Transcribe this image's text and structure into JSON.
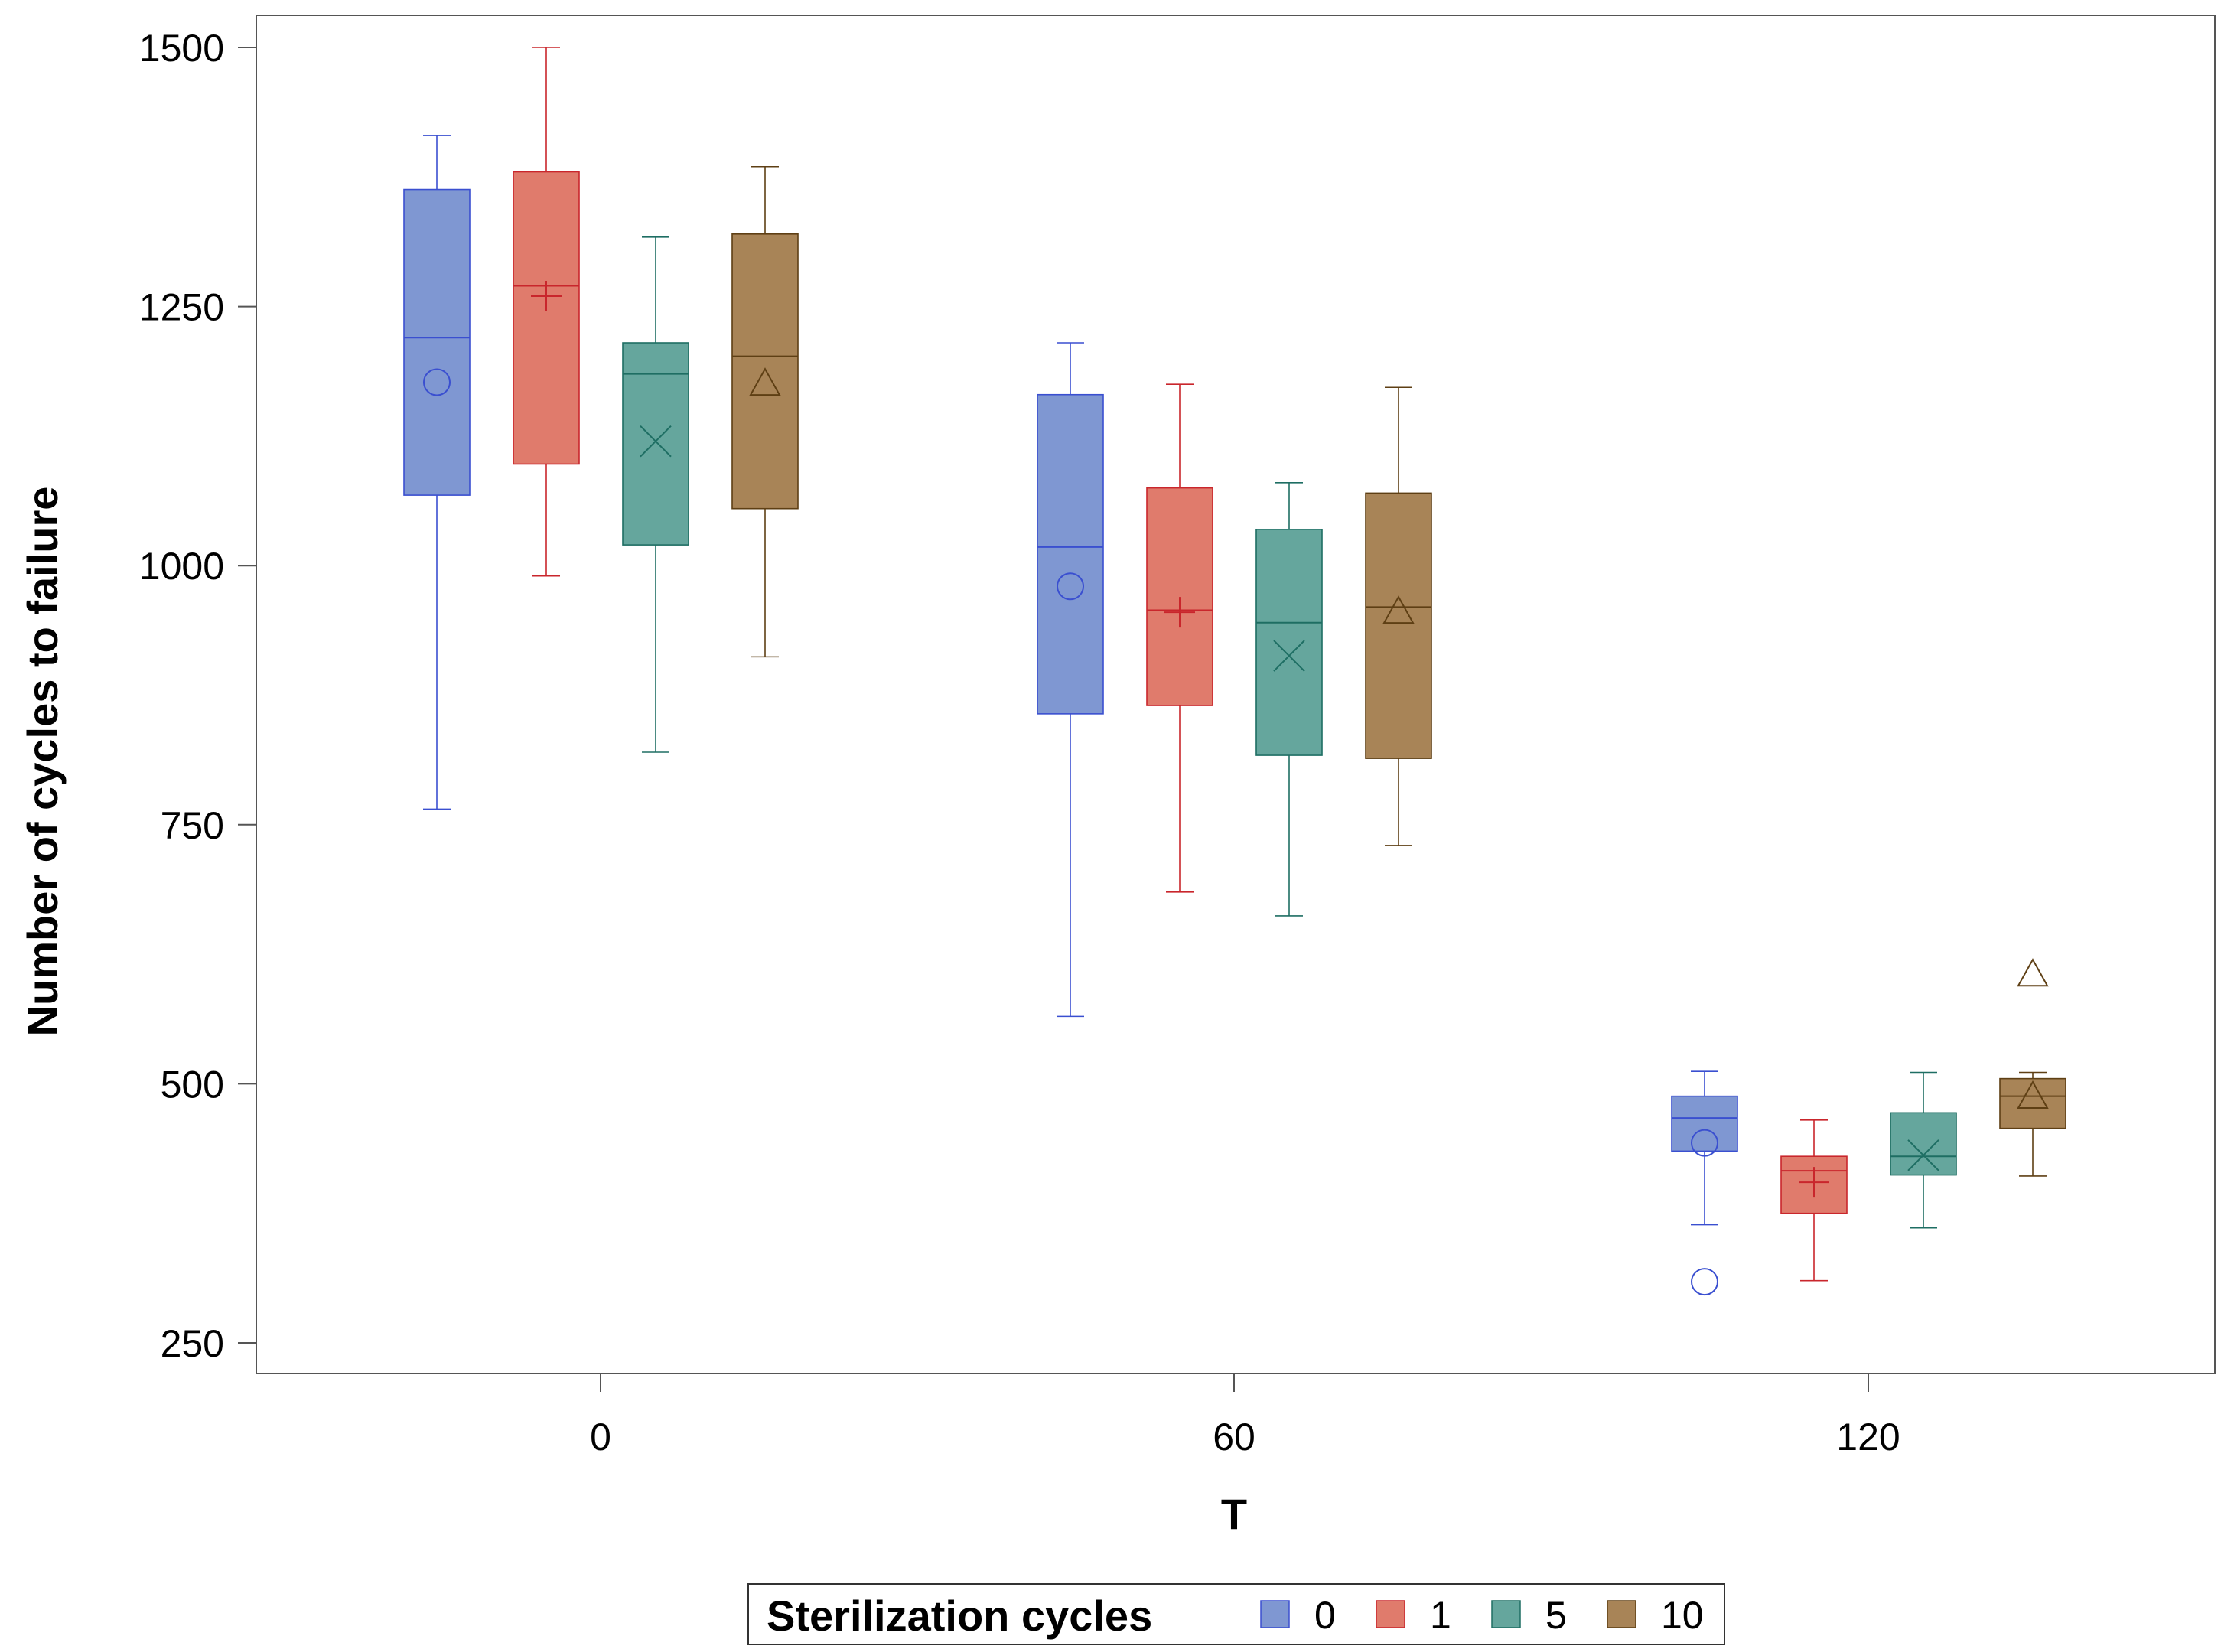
{
  "chart_data": {
    "type": "box",
    "title": "",
    "xlabel": "T",
    "ylabel": "Number of cycles to failure",
    "ylim": [
      220,
      1530
    ],
    "yticks": [
      250,
      500,
      750,
      1000,
      1250,
      1500
    ],
    "categories": [
      "0",
      "60",
      "120"
    ],
    "legend": {
      "title": "Sterilization cycles",
      "placement": "bottom"
    },
    "series": [
      {
        "name": "0",
        "color": "#7f97d2",
        "edge_color": "#3a4fd0",
        "mean_marker": "circle",
        "boxes": [
          {
            "whisker_low": 765,
            "q1": 1068,
            "median": 1220,
            "q3": 1363,
            "whisker_high": 1415,
            "mean": 1177,
            "outliers": []
          },
          {
            "whisker_low": 565,
            "q1": 857,
            "median": 1018,
            "q3": 1165,
            "whisker_high": 1215,
            "mean": 980,
            "outliers": []
          },
          {
            "whisker_low": 364,
            "q1": 435,
            "median": 467,
            "q3": 488,
            "whisker_high": 512,
            "mean": 443,
            "outliers": [
              309
            ]
          }
        ]
      },
      {
        "name": "1",
        "color": "#e07b6c",
        "edge_color": "#c9262c",
        "mean_marker": "plus",
        "boxes": [
          {
            "whisker_low": 990,
            "q1": 1098,
            "median": 1270,
            "q3": 1380,
            "whisker_high": 1500,
            "mean": 1260,
            "outliers": []
          },
          {
            "whisker_low": 685,
            "q1": 865,
            "median": 957,
            "q3": 1075,
            "whisker_high": 1175,
            "mean": 955,
            "outliers": []
          },
          {
            "whisker_low": 310,
            "q1": 375,
            "median": 416,
            "q3": 430,
            "whisker_high": 465,
            "mean": 405,
            "outliers": []
          }
        ]
      },
      {
        "name": "5",
        "color": "#65a69d",
        "edge_color": "#1e6e63",
        "mean_marker": "x",
        "boxes": [
          {
            "whisker_low": 820,
            "q1": 1020,
            "median": 1185,
            "q3": 1215,
            "whisker_high": 1317,
            "mean": 1120,
            "outliers": []
          },
          {
            "whisker_low": 662,
            "q1": 817,
            "median": 945,
            "q3": 1035,
            "whisker_high": 1080,
            "mean": 913,
            "outliers": []
          },
          {
            "whisker_low": 361,
            "q1": 412,
            "median": 430,
            "q3": 472,
            "whisker_high": 511,
            "mean": 431,
            "outliers": []
          }
        ]
      },
      {
        "name": "10",
        "color": "#a88457",
        "edge_color": "#5e3f14",
        "mean_marker": "triangle",
        "boxes": [
          {
            "whisker_low": 912,
            "q1": 1055,
            "median": 1202,
            "q3": 1320,
            "whisker_high": 1385,
            "mean": 1175,
            "outliers": []
          },
          {
            "whisker_low": 730,
            "q1": 814,
            "median": 960,
            "q3": 1070,
            "whisker_high": 1172,
            "mean": 955,
            "outliers": []
          },
          {
            "whisker_low": 411,
            "q1": 457,
            "median": 488,
            "q3": 505,
            "whisker_high": 511,
            "mean": 487,
            "outliers": [
              605
            ]
          }
        ]
      }
    ]
  }
}
